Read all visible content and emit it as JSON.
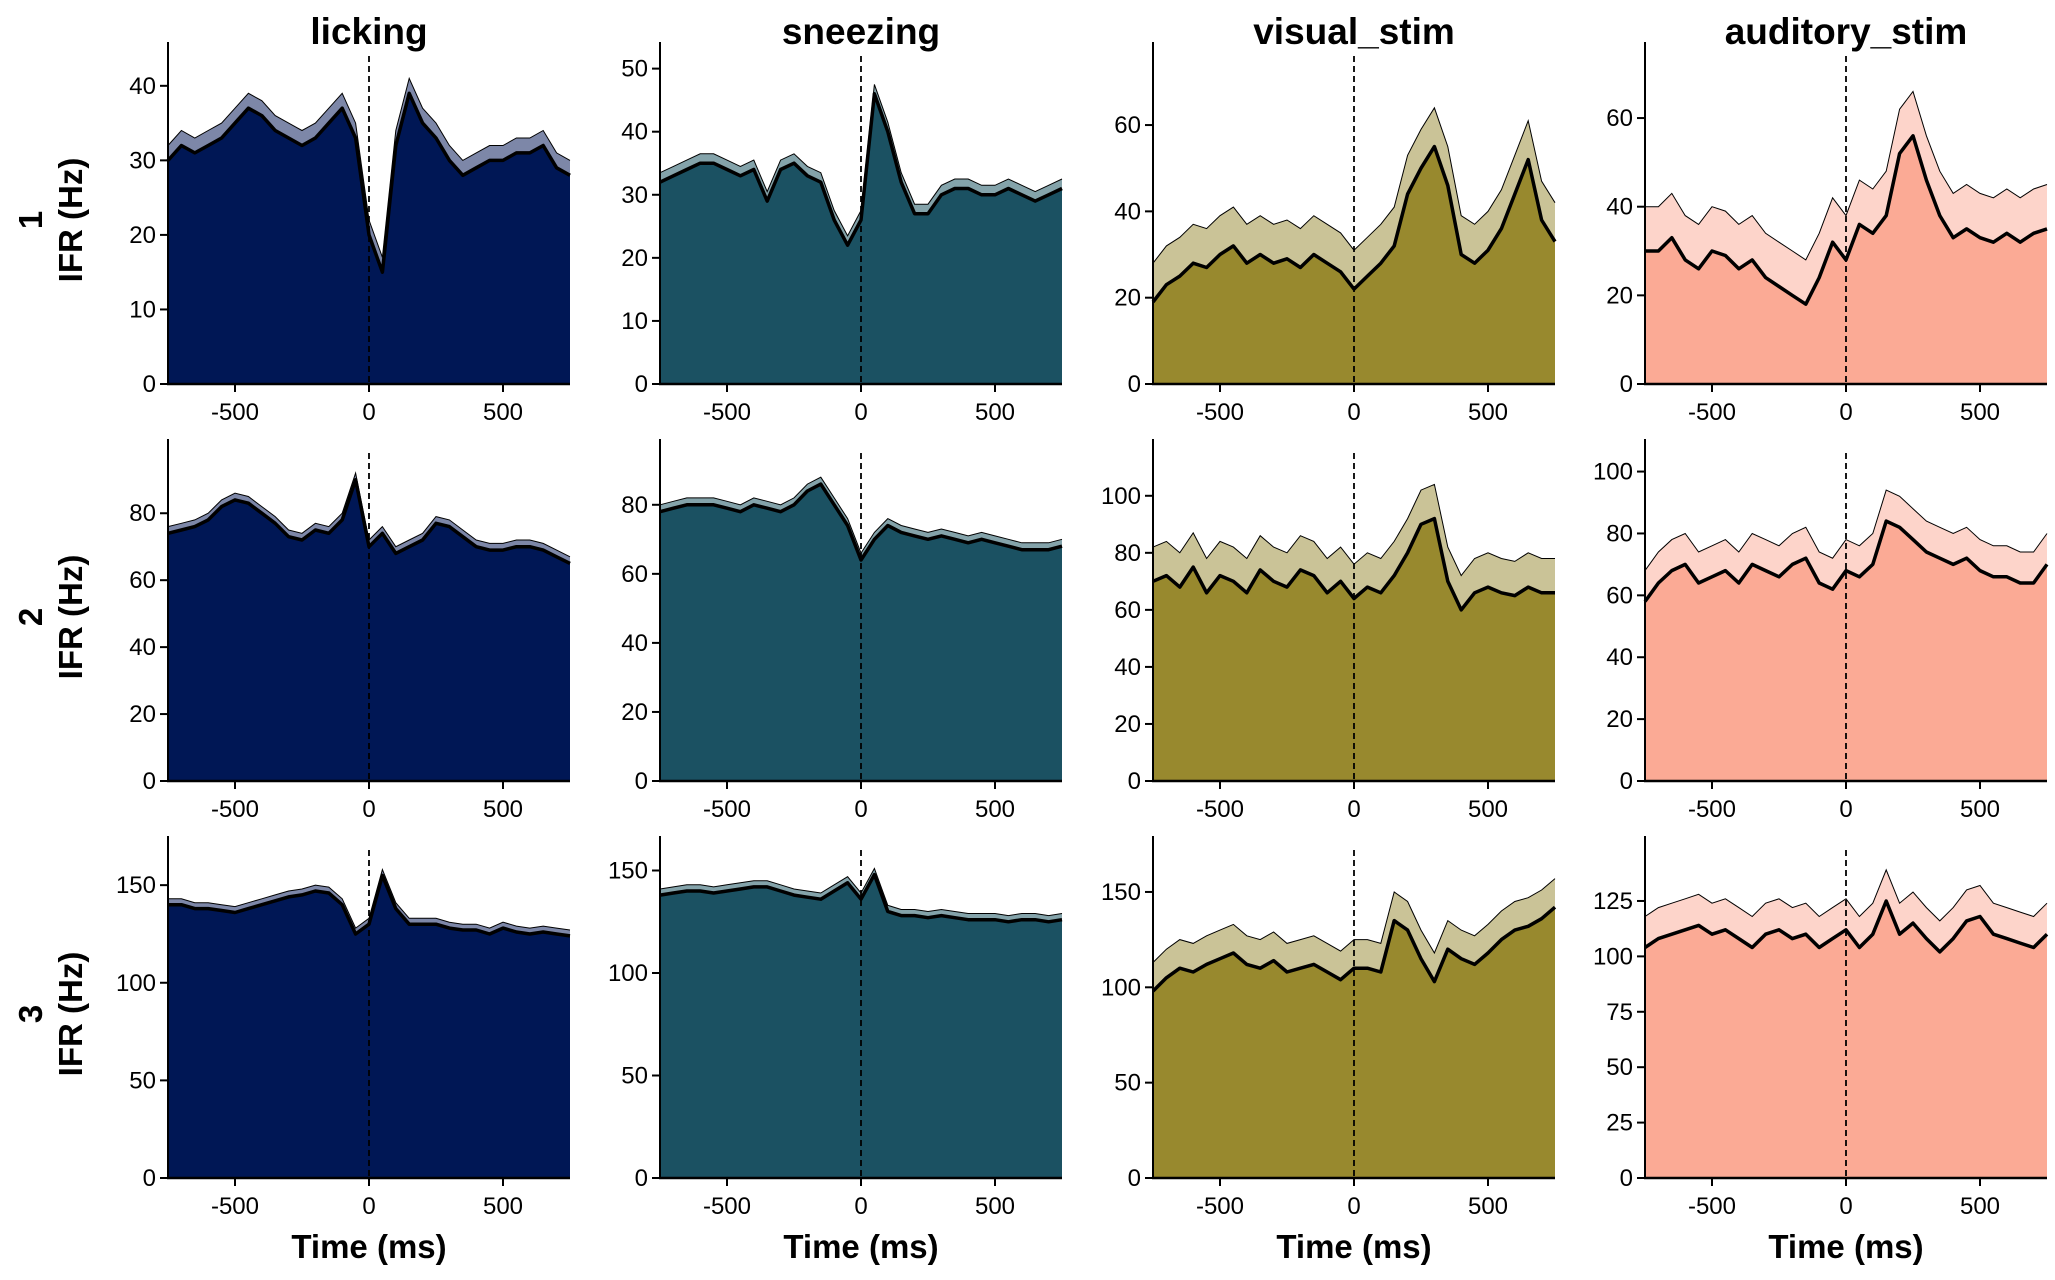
{
  "chart_data": {
    "type": "area",
    "columns": [
      "licking",
      "sneezing",
      "visual_stim",
      "auditory_stim"
    ],
    "rows": [
      "1",
      "2",
      "3"
    ],
    "ylabel": "IFR (Hz)",
    "xlabel": "Time (ms)",
    "xlim": [
      -750,
      750
    ],
    "xticks": [
      -500,
      0,
      500
    ],
    "event_marker_x": 0,
    "x": [
      -750,
      -700,
      -650,
      -600,
      -550,
      -500,
      -450,
      -400,
      -350,
      -300,
      -250,
      -200,
      -150,
      -100,
      -50,
      0,
      50,
      100,
      150,
      200,
      250,
      300,
      350,
      400,
      450,
      500,
      550,
      600,
      650,
      700,
      750
    ],
    "colors": {
      "licking": {
        "fill": "#001755",
        "band": "#7d87a8"
      },
      "sneezing": {
        "fill": "#1b5162",
        "band": "#84a3aa"
      },
      "visual_stim": {
        "fill": "#98892e",
        "band": "#cac397"
      },
      "auditory_stim": {
        "fill": "#fbaa95",
        "band": "#fdd4ca"
      }
    },
    "panels": [
      [
        {
          "ylim": [
            0,
            44
          ],
          "yticks": [
            0,
            10,
            20,
            30,
            40
          ],
          "sem": 2,
          "mean": [
            30,
            32,
            31,
            32,
            33,
            35,
            37,
            36,
            34,
            33,
            32,
            33,
            35,
            37,
            33,
            20,
            15,
            32,
            39,
            35,
            33,
            30,
            28,
            29,
            30,
            30,
            31,
            31,
            32,
            29,
            28
          ]
        },
        {
          "ylim": [
            0,
            52
          ],
          "yticks": [
            0,
            10,
            20,
            30,
            40,
            50
          ],
          "sem": 1.5,
          "mean": [
            32,
            33,
            34,
            35,
            35,
            34,
            33,
            34,
            29,
            34,
            35,
            33,
            32,
            26,
            22,
            26,
            46,
            40,
            32,
            27,
            27,
            30,
            31,
            31,
            30,
            30,
            31,
            30,
            29,
            30,
            31
          ]
        },
        {
          "ylim": [
            0,
            76
          ],
          "yticks": [
            0,
            20,
            40,
            60
          ],
          "sem": 9,
          "mean": [
            19,
            23,
            25,
            28,
            27,
            30,
            32,
            28,
            30,
            28,
            29,
            27,
            30,
            28,
            26,
            22,
            25,
            28,
            32,
            44,
            50,
            55,
            46,
            30,
            28,
            31,
            36,
            44,
            52,
            38,
            33
          ]
        },
        {
          "ylim": [
            0,
            74
          ],
          "yticks": [
            0,
            20,
            40,
            60
          ],
          "sem": 10,
          "mean": [
            30,
            30,
            33,
            28,
            26,
            30,
            29,
            26,
            28,
            24,
            22,
            20,
            18,
            24,
            32,
            28,
            36,
            34,
            38,
            52,
            56,
            46,
            38,
            33,
            35,
            33,
            32,
            34,
            32,
            34,
            35
          ]
        }
      ],
      [
        {
          "ylim": [
            0,
            98
          ],
          "yticks": [
            0,
            20,
            40,
            60,
            80
          ],
          "sem": 2,
          "mean": [
            74,
            75,
            76,
            78,
            82,
            84,
            83,
            80,
            77,
            73,
            72,
            75,
            74,
            78,
            90,
            70,
            74,
            68,
            70,
            72,
            77,
            76,
            73,
            70,
            69,
            69,
            70,
            70,
            69,
            67,
            65
          ]
        },
        {
          "ylim": [
            0,
            95
          ],
          "yticks": [
            0,
            20,
            40,
            60,
            80
          ],
          "sem": 2,
          "mean": [
            78,
            79,
            80,
            80,
            80,
            79,
            78,
            80,
            79,
            78,
            80,
            84,
            86,
            80,
            74,
            64,
            70,
            74,
            72,
            71,
            70,
            71,
            70,
            69,
            70,
            69,
            68,
            67,
            67,
            67,
            68
          ]
        },
        {
          "ylim": [
            0,
            115
          ],
          "yticks": [
            0,
            20,
            40,
            60,
            80,
            100
          ],
          "sem": 12,
          "mean": [
            70,
            72,
            68,
            75,
            66,
            72,
            70,
            66,
            74,
            70,
            68,
            74,
            72,
            66,
            70,
            64,
            68,
            66,
            72,
            80,
            90,
            92,
            70,
            60,
            66,
            68,
            66,
            65,
            68,
            66,
            66
          ]
        },
        {
          "ylim": [
            0,
            106
          ],
          "yticks": [
            0,
            20,
            40,
            60,
            80,
            100
          ],
          "sem": 10,
          "mean": [
            58,
            64,
            68,
            70,
            64,
            66,
            68,
            64,
            70,
            68,
            66,
            70,
            72,
            64,
            62,
            68,
            66,
            70,
            84,
            82,
            78,
            74,
            72,
            70,
            72,
            68,
            66,
            66,
            64,
            64,
            70
          ]
        }
      ],
      [
        {
          "ylim": [
            0,
            168
          ],
          "yticks": [
            0,
            50,
            100,
            150
          ],
          "sem": 3,
          "mean": [
            140,
            140,
            138,
            138,
            137,
            136,
            138,
            140,
            142,
            144,
            145,
            147,
            146,
            140,
            125,
            130,
            155,
            138,
            130,
            130,
            130,
            128,
            127,
            127,
            125,
            128,
            126,
            125,
            126,
            125,
            124
          ]
        },
        {
          "ylim": [
            0,
            160
          ],
          "yticks": [
            0,
            50,
            100,
            150
          ],
          "sem": 3,
          "mean": [
            138,
            139,
            140,
            140,
            139,
            140,
            141,
            142,
            142,
            140,
            138,
            137,
            136,
            140,
            144,
            136,
            148,
            130,
            128,
            128,
            127,
            128,
            127,
            126,
            126,
            126,
            125,
            126,
            126,
            125,
            126
          ]
        },
        {
          "ylim": [
            0,
            172
          ],
          "yticks": [
            0,
            50,
            100,
            150
          ],
          "sem": 15,
          "mean": [
            98,
            105,
            110,
            108,
            112,
            115,
            118,
            112,
            110,
            114,
            108,
            110,
            112,
            108,
            104,
            110,
            110,
            108,
            135,
            130,
            115,
            103,
            120,
            115,
            112,
            118,
            125,
            130,
            132,
            136,
            142
          ]
        },
        {
          "ylim": [
            0,
            148
          ],
          "yticks": [
            0,
            25,
            50,
            75,
            100,
            125
          ],
          "sem": 14,
          "mean": [
            104,
            108,
            110,
            112,
            114,
            110,
            112,
            108,
            104,
            110,
            112,
            108,
            110,
            104,
            108,
            112,
            104,
            110,
            125,
            110,
            115,
            108,
            102,
            108,
            116,
            118,
            110,
            108,
            106,
            104,
            110
          ]
        }
      ]
    ]
  }
}
